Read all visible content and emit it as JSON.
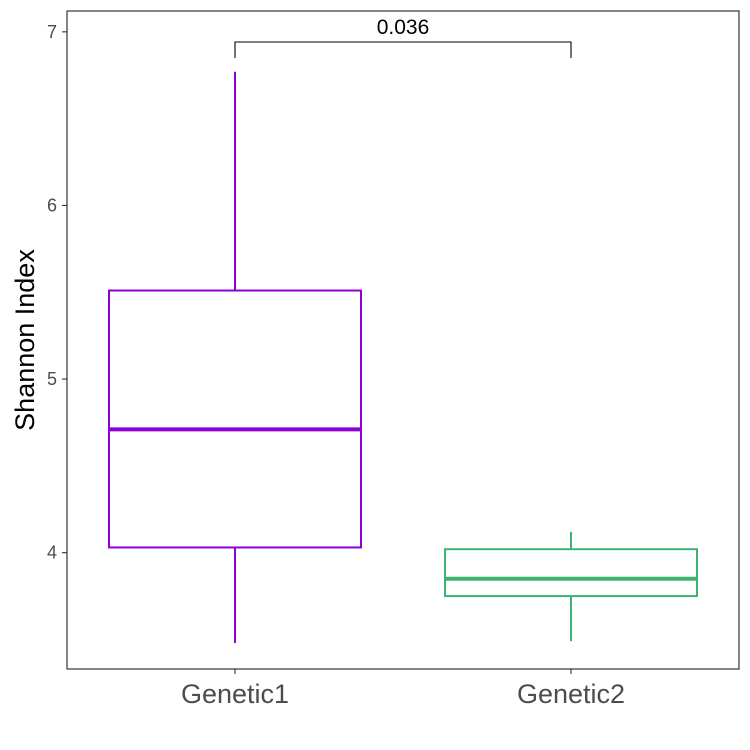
{
  "chart_data": {
    "type": "box",
    "title": "",
    "xlabel": "",
    "ylabel": "Shannon Index",
    "ylim": [
      3.33,
      7.12
    ],
    "yticks": [
      4,
      5,
      6,
      7
    ],
    "categories": [
      "Genetic1",
      "Genetic2"
    ],
    "boxes": [
      {
        "category": "Genetic1",
        "min": 3.48,
        "q1": 4.03,
        "median": 4.71,
        "q3": 5.51,
        "max": 6.77,
        "color": "#8b00d6"
      },
      {
        "category": "Genetic2",
        "min": 3.49,
        "q1": 3.75,
        "median": 3.85,
        "q3": 4.02,
        "max": 4.12,
        "color": "#3cb371"
      }
    ],
    "annotations": [
      {
        "type": "bracket",
        "from": "Genetic1",
        "to": "Genetic2",
        "label": "0.036"
      }
    ],
    "grid": false,
    "legend": "none"
  }
}
